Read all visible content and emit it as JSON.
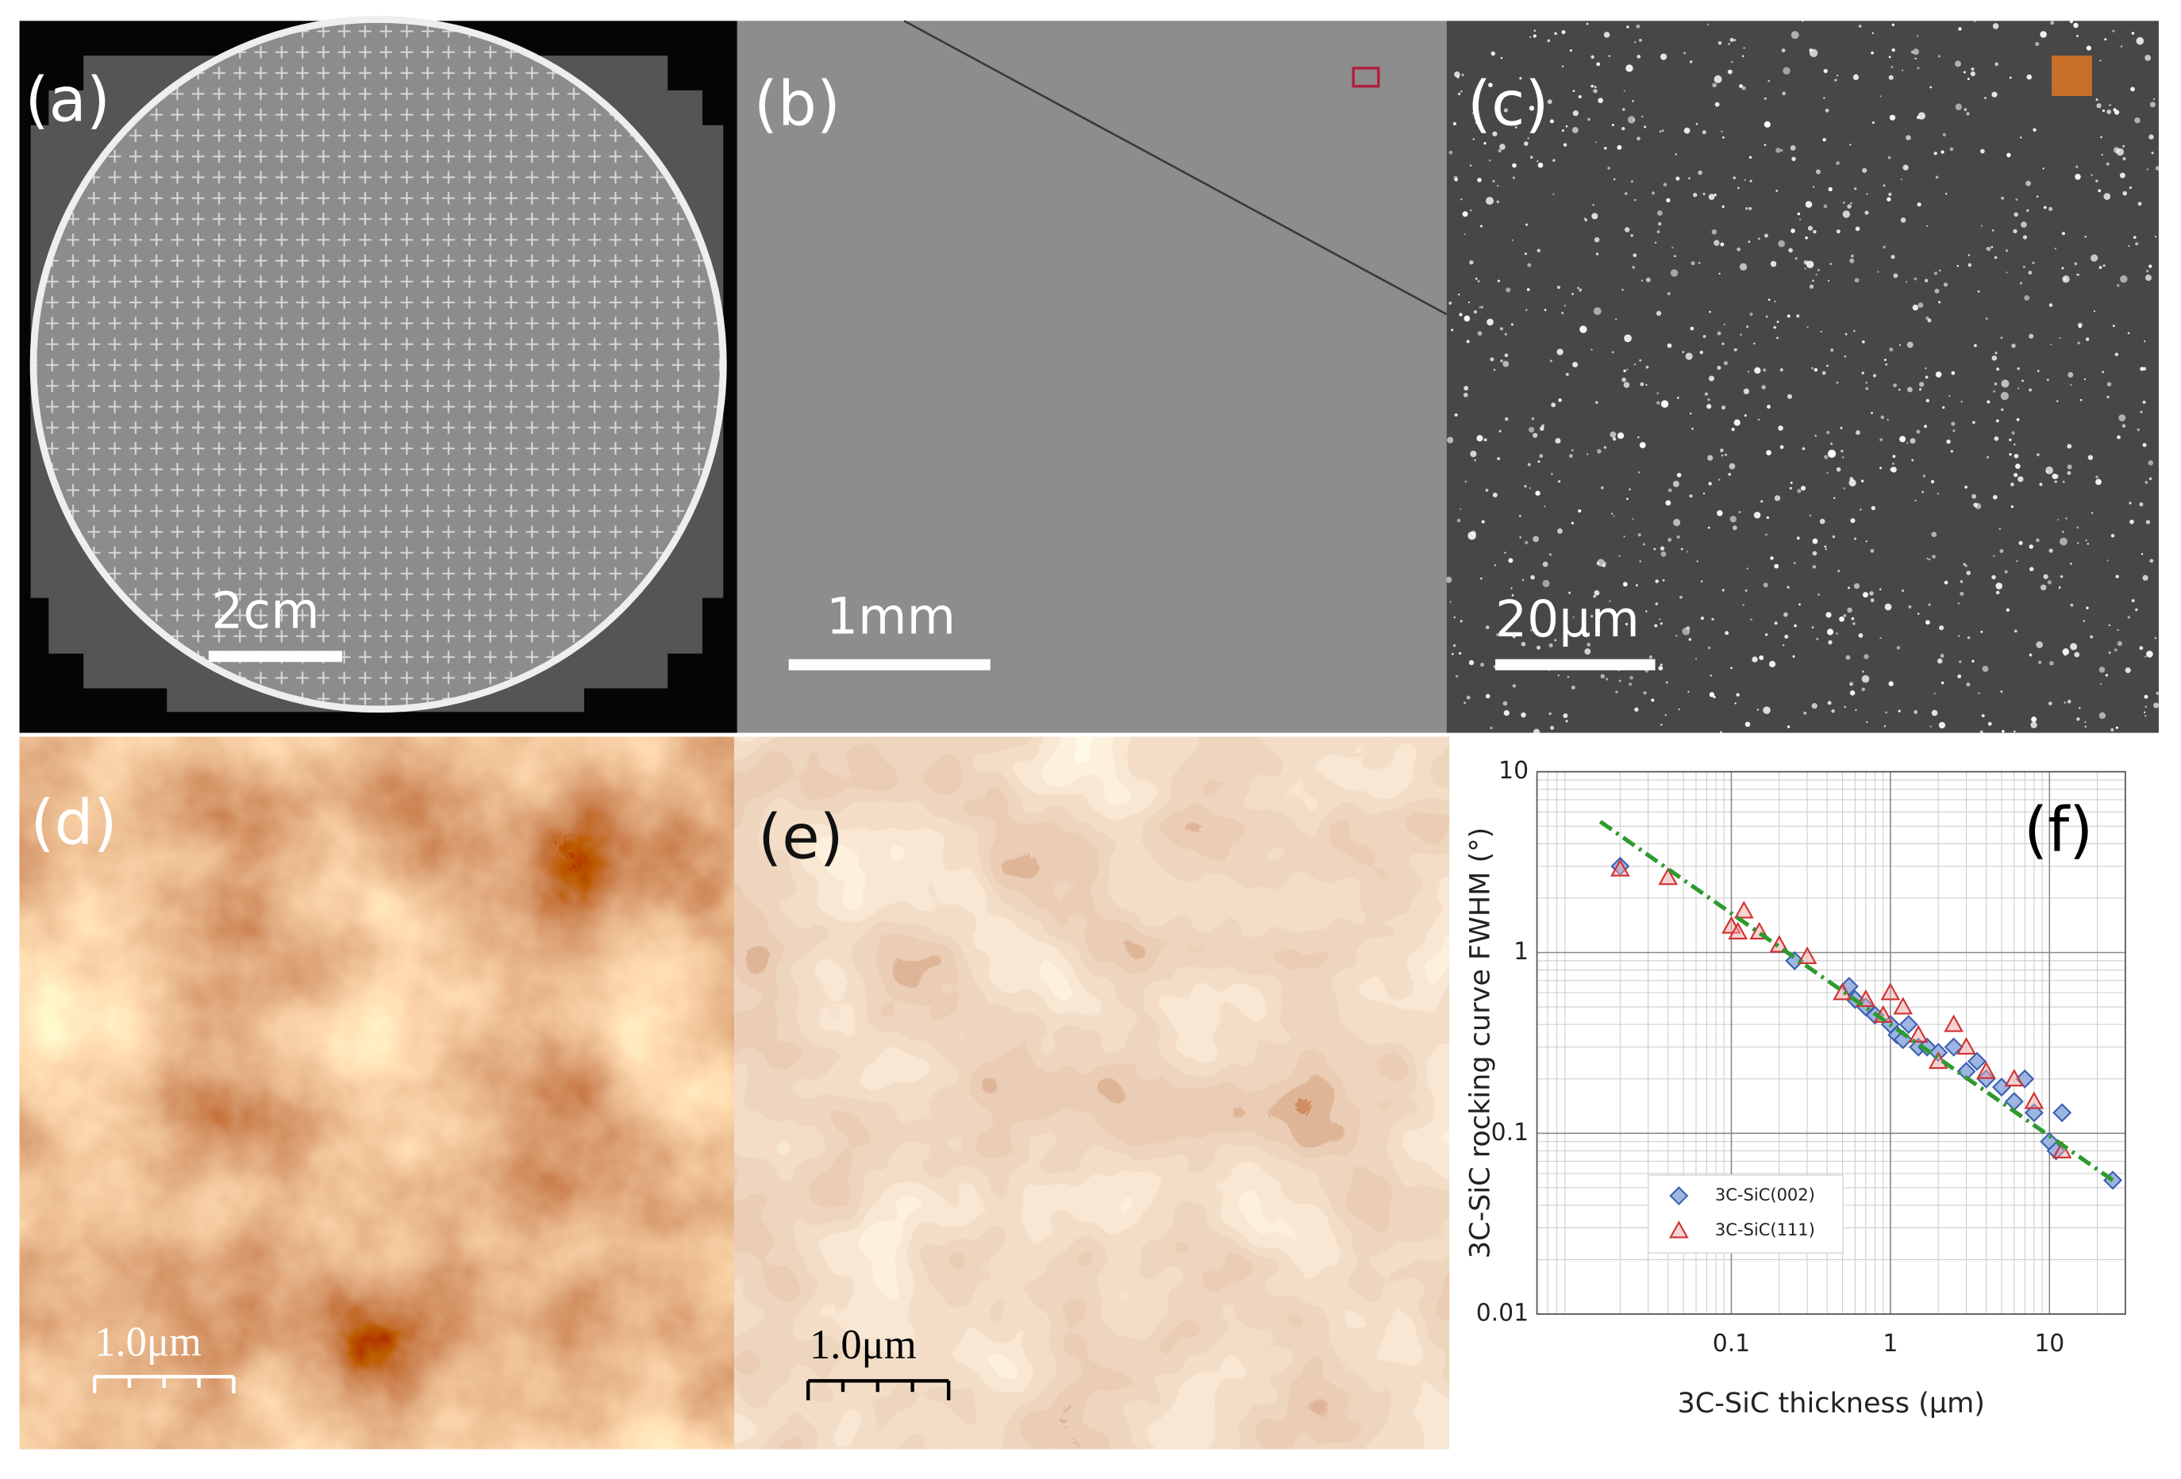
{
  "panels": [
    {
      "label": "(a)",
      "scale_bar": "2cm"
    },
    {
      "label": "(b)",
      "scale_bar": "1mm"
    },
    {
      "label": "(c)",
      "scale_bar": "20μm"
    },
    {
      "label": "(d)",
      "scale_bar": "1.0μm"
    },
    {
      "label": "(e)",
      "scale_bar": "1.0μm"
    },
    {
      "label": "(f)"
    }
  ],
  "chart_data": {
    "type": "scatter",
    "x_label": "3C-SiC thickness (μm)",
    "y_label": "3C-SiC rocking curve FWHM (°)",
    "x_log": true,
    "y_log": true,
    "grid": true,
    "minor_grid": true,
    "legend": "lower left",
    "xlim": [
      0.006,
      30
    ],
    "ylim": [
      0.01,
      10
    ],
    "xticks": [
      0.1,
      1,
      10
    ],
    "yticks": [
      0.01,
      0.1,
      1,
      10
    ],
    "series": [
      {
        "name": "3C-SiC(002)",
        "color": "#3a5fb0",
        "marker": "diamond",
        "x": [
          0.02,
          0.25,
          0.55,
          0.6,
          0.7,
          0.8,
          1,
          1.1,
          1.2,
          1.3,
          1.5,
          1.7,
          2,
          2.5,
          3,
          3.5,
          4,
          5,
          6,
          7,
          8,
          10,
          11,
          12,
          25
        ],
        "values": [
          3.0,
          0.9,
          0.65,
          0.55,
          0.5,
          0.45,
          0.4,
          0.35,
          0.33,
          0.4,
          0.3,
          0.3,
          0.28,
          0.3,
          0.22,
          0.25,
          0.2,
          0.18,
          0.15,
          0.2,
          0.13,
          0.09,
          0.08,
          0.13,
          0.055
        ]
      },
      {
        "name": "3C-SiC(111)",
        "color": "#d03030",
        "marker": "triangle",
        "x": [
          0.02,
          0.04,
          0.1,
          0.11,
          0.12,
          0.15,
          0.2,
          0.3,
          0.5,
          0.7,
          0.9,
          1,
          1.2,
          1.5,
          2,
          2.5,
          3,
          4,
          6,
          8,
          12
        ],
        "values": [
          2.9,
          2.6,
          1.4,
          1.3,
          1.7,
          1.3,
          1.1,
          0.95,
          0.6,
          0.55,
          0.45,
          0.6,
          0.5,
          0.35,
          0.25,
          0.4,
          0.3,
          0.22,
          0.2,
          0.15,
          0.08
        ]
      }
    ],
    "fit_line": {
      "x": [
        0.015,
        25
      ],
      "values": [
        5.3,
        0.055
      ],
      "color": "#2e9a2e"
    }
  }
}
